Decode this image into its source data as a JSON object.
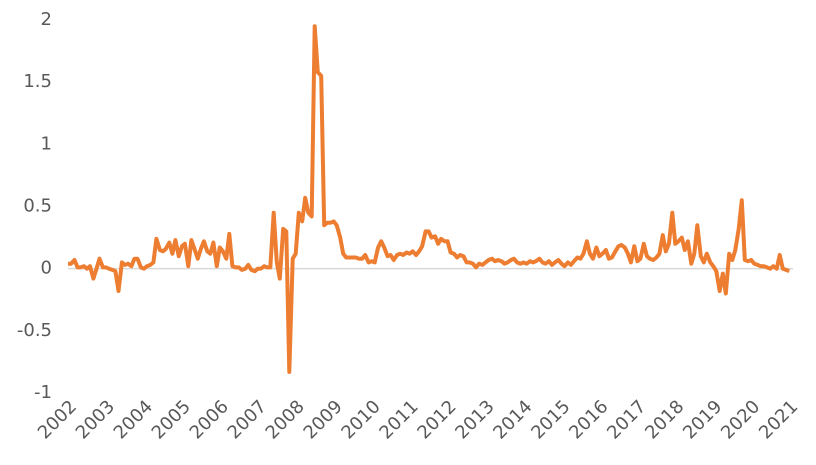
{
  "chart_data": {
    "type": "line",
    "x": [
      2002.0,
      2002.08,
      2002.17,
      2002.25,
      2002.33,
      2002.42,
      2002.5,
      2002.58,
      2002.67,
      2002.75,
      2002.83,
      2002.92,
      2003.0,
      2003.08,
      2003.17,
      2003.25,
      2003.33,
      2003.42,
      2003.5,
      2003.58,
      2003.67,
      2003.75,
      2003.83,
      2003.92,
      2004.0,
      2004.08,
      2004.17,
      2004.25,
      2004.33,
      2004.42,
      2004.5,
      2004.58,
      2004.67,
      2004.75,
      2004.83,
      2004.92,
      2005.0,
      2005.08,
      2005.17,
      2005.25,
      2005.33,
      2005.42,
      2005.5,
      2005.58,
      2005.67,
      2005.75,
      2005.83,
      2005.92,
      2006.0,
      2006.08,
      2006.17,
      2006.25,
      2006.33,
      2006.42,
      2006.5,
      2006.58,
      2006.67,
      2006.75,
      2006.83,
      2006.92,
      2007.0,
      2007.08,
      2007.17,
      2007.25,
      2007.33,
      2007.42,
      2007.5,
      2007.58,
      2007.67,
      2007.75,
      2007.83,
      2007.92,
      2008.0,
      2008.08,
      2008.17,
      2008.25,
      2008.33,
      2008.42,
      2008.5,
      2008.58,
      2008.67,
      2008.75,
      2008.83,
      2008.92,
      2009.0,
      2009.08,
      2009.17,
      2009.25,
      2009.33,
      2009.42,
      2009.5,
      2009.58,
      2009.67,
      2009.75,
      2009.83,
      2009.92,
      2010.0,
      2010.08,
      2010.17,
      2010.25,
      2010.33,
      2010.42,
      2010.5,
      2010.58,
      2010.67,
      2010.75,
      2010.83,
      2010.92,
      2011.0,
      2011.08,
      2011.17,
      2011.25,
      2011.33,
      2011.42,
      2011.5,
      2011.58,
      2011.67,
      2011.75,
      2011.83,
      2011.92,
      2012.0,
      2012.08,
      2012.17,
      2012.25,
      2012.33,
      2012.42,
      2012.5,
      2012.58,
      2012.67,
      2012.75,
      2012.83,
      2012.92,
      2013.0,
      2013.08,
      2013.17,
      2013.25,
      2013.33,
      2013.42,
      2013.5,
      2013.58,
      2013.67,
      2013.75,
      2013.83,
      2013.92,
      2014.0,
      2014.08,
      2014.17,
      2014.25,
      2014.33,
      2014.42,
      2014.5,
      2014.58,
      2014.67,
      2014.75,
      2014.83,
      2014.92,
      2015.0,
      2015.08,
      2015.17,
      2015.25,
      2015.33,
      2015.42,
      2015.5,
      2015.58,
      2015.67,
      2015.75,
      2015.83,
      2015.92,
      2016.0,
      2016.08,
      2016.17,
      2016.25,
      2016.33,
      2016.42,
      2016.5,
      2016.58,
      2016.67,
      2016.75,
      2016.83,
      2016.92,
      2017.0,
      2017.08,
      2017.17,
      2017.25,
      2017.33,
      2017.42,
      2017.5,
      2017.58,
      2017.67,
      2017.75,
      2017.83,
      2017.92,
      2018.0,
      2018.08,
      2018.17,
      2018.25,
      2018.33,
      2018.42,
      2018.5,
      2018.58,
      2018.67,
      2018.75,
      2018.83,
      2018.92,
      2019.0,
      2019.08,
      2019.17,
      2019.25,
      2019.33,
      2019.42,
      2019.5,
      2019.58,
      2019.67,
      2019.75,
      2019.83,
      2019.92,
      2020.0,
      2020.08,
      2020.17,
      2020.25,
      2020.33,
      2020.42,
      2020.5,
      2020.58,
      2020.67,
      2020.75,
      2020.83,
      2020.92,
      2021.0
    ],
    "series": [
      {
        "color": "#ed7d31",
        "values": [
          0.04,
          0.04,
          0.07,
          0.01,
          0.01,
          0.02,
          0.0,
          0.02,
          -0.08,
          0.0,
          0.08,
          0.01,
          0.01,
          0.0,
          -0.01,
          -0.02,
          -0.18,
          0.05,
          0.03,
          0.04,
          0.02,
          0.08,
          0.08,
          0.01,
          0.0,
          0.02,
          0.03,
          0.05,
          0.24,
          0.15,
          0.14,
          0.16,
          0.21,
          0.12,
          0.23,
          0.1,
          0.18,
          0.2,
          0.02,
          0.23,
          0.16,
          0.08,
          0.16,
          0.22,
          0.14,
          0.12,
          0.21,
          0.02,
          0.17,
          0.14,
          0.08,
          0.28,
          0.02,
          0.01,
          0.01,
          -0.01,
          0.0,
          0.03,
          -0.01,
          -0.02,
          0.0,
          0.0,
          0.02,
          0.01,
          0.01,
          0.45,
          0.05,
          -0.08,
          0.32,
          0.3,
          -0.83,
          0.08,
          0.12,
          0.45,
          0.38,
          0.57,
          0.45,
          0.42,
          1.95,
          1.58,
          1.55,
          0.35,
          0.37,
          0.37,
          0.38,
          0.35,
          0.25,
          0.12,
          0.09,
          0.09,
          0.09,
          0.09,
          0.08,
          0.08,
          0.11,
          0.05,
          0.06,
          0.05,
          0.17,
          0.22,
          0.17,
          0.1,
          0.11,
          0.07,
          0.11,
          0.12,
          0.11,
          0.13,
          0.12,
          0.14,
          0.11,
          0.14,
          0.18,
          0.3,
          0.3,
          0.25,
          0.26,
          0.2,
          0.24,
          0.22,
          0.22,
          0.13,
          0.12,
          0.09,
          0.11,
          0.1,
          0.05,
          0.05,
          0.04,
          0.01,
          0.04,
          0.03,
          0.05,
          0.07,
          0.08,
          0.06,
          0.07,
          0.06,
          0.04,
          0.05,
          0.07,
          0.08,
          0.05,
          0.04,
          0.05,
          0.04,
          0.06,
          0.05,
          0.06,
          0.08,
          0.05,
          0.04,
          0.06,
          0.03,
          0.05,
          0.07,
          0.04,
          0.02,
          0.05,
          0.03,
          0.06,
          0.09,
          0.08,
          0.12,
          0.22,
          0.12,
          0.08,
          0.17,
          0.1,
          0.12,
          0.15,
          0.08,
          0.09,
          0.14,
          0.18,
          0.19,
          0.17,
          0.12,
          0.05,
          0.18,
          0.06,
          0.08,
          0.2,
          0.1,
          0.08,
          0.07,
          0.09,
          0.12,
          0.27,
          0.14,
          0.2,
          0.45,
          0.2,
          0.22,
          0.25,
          0.15,
          0.22,
          0.04,
          0.12,
          0.35,
          0.1,
          0.05,
          0.12,
          0.05,
          0.02,
          -0.02,
          -0.18,
          -0.04,
          -0.2,
          0.12,
          0.07,
          0.15,
          0.32,
          0.55,
          0.07,
          0.06,
          0.07,
          0.04,
          0.03,
          0.02,
          0.02,
          0.01,
          0.0,
          0.02,
          0.0,
          0.11,
          0.0,
          -0.01,
          -0.02
        ]
      }
    ],
    "xlim": [
      2002,
      2021.1
    ],
    "xticks": [
      2002,
      2003,
      2004,
      2005,
      2006,
      2007,
      2008,
      2009,
      2010,
      2011,
      2012,
      2013,
      2014,
      2015,
      2016,
      2017,
      2018,
      2019,
      2020,
      2021
    ],
    "ylim": [
      -1,
      2
    ],
    "yticks": [
      -1,
      -0.5,
      0,
      0.5,
      1,
      1.5,
      2
    ]
  }
}
